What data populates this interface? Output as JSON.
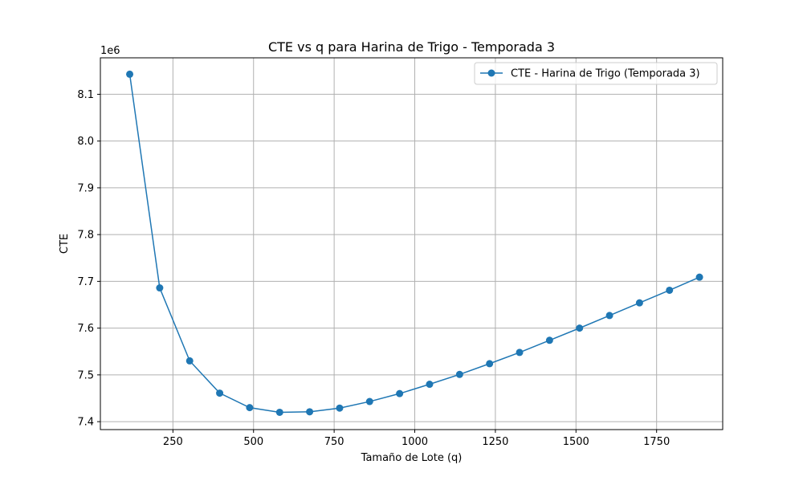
{
  "chart_data": {
    "type": "line",
    "title": "CTE vs q para Harina de Trigo - Temporada 3",
    "xlabel": "Tamaño de Lote (q)",
    "ylabel": "CTE",
    "y_offset_label": "1e6",
    "xlim": [
      25,
      1955
    ],
    "ylim": [
      7.383,
      8.178
    ],
    "x_ticks": [
      250,
      500,
      750,
      1000,
      1250,
      1500,
      1750
    ],
    "x_tick_labels": [
      "250",
      "500",
      "750",
      "1000",
      "1250",
      "1500",
      "1750"
    ],
    "y_ticks": [
      7.4,
      7.5,
      7.6,
      7.7,
      7.8,
      7.9,
      8.0,
      8.1
    ],
    "y_tick_labels": [
      "7.4",
      "7.5",
      "7.6",
      "7.7",
      "7.8",
      "7.9",
      "8.0",
      "8.1"
    ],
    "grid": true,
    "legend_position": "top-right",
    "series": [
      {
        "name": "CTE - Harina de Trigo (Temporada 3)",
        "color": "#1f77b4",
        "marker": "circle",
        "x": [
          116,
          209,
          302,
          395,
          488,
          581,
          674,
          767,
          860,
          953,
          1046,
          1139,
          1232,
          1325,
          1418,
          1511,
          1604,
          1697,
          1790,
          1883
        ],
        "y": [
          8.143,
          7.686,
          7.53,
          7.461,
          7.43,
          7.42,
          7.421,
          7.429,
          7.443,
          7.46,
          7.48,
          7.501,
          7.524,
          7.548,
          7.574,
          7.6,
          7.627,
          7.654,
          7.681,
          7.709
        ]
      }
    ]
  }
}
